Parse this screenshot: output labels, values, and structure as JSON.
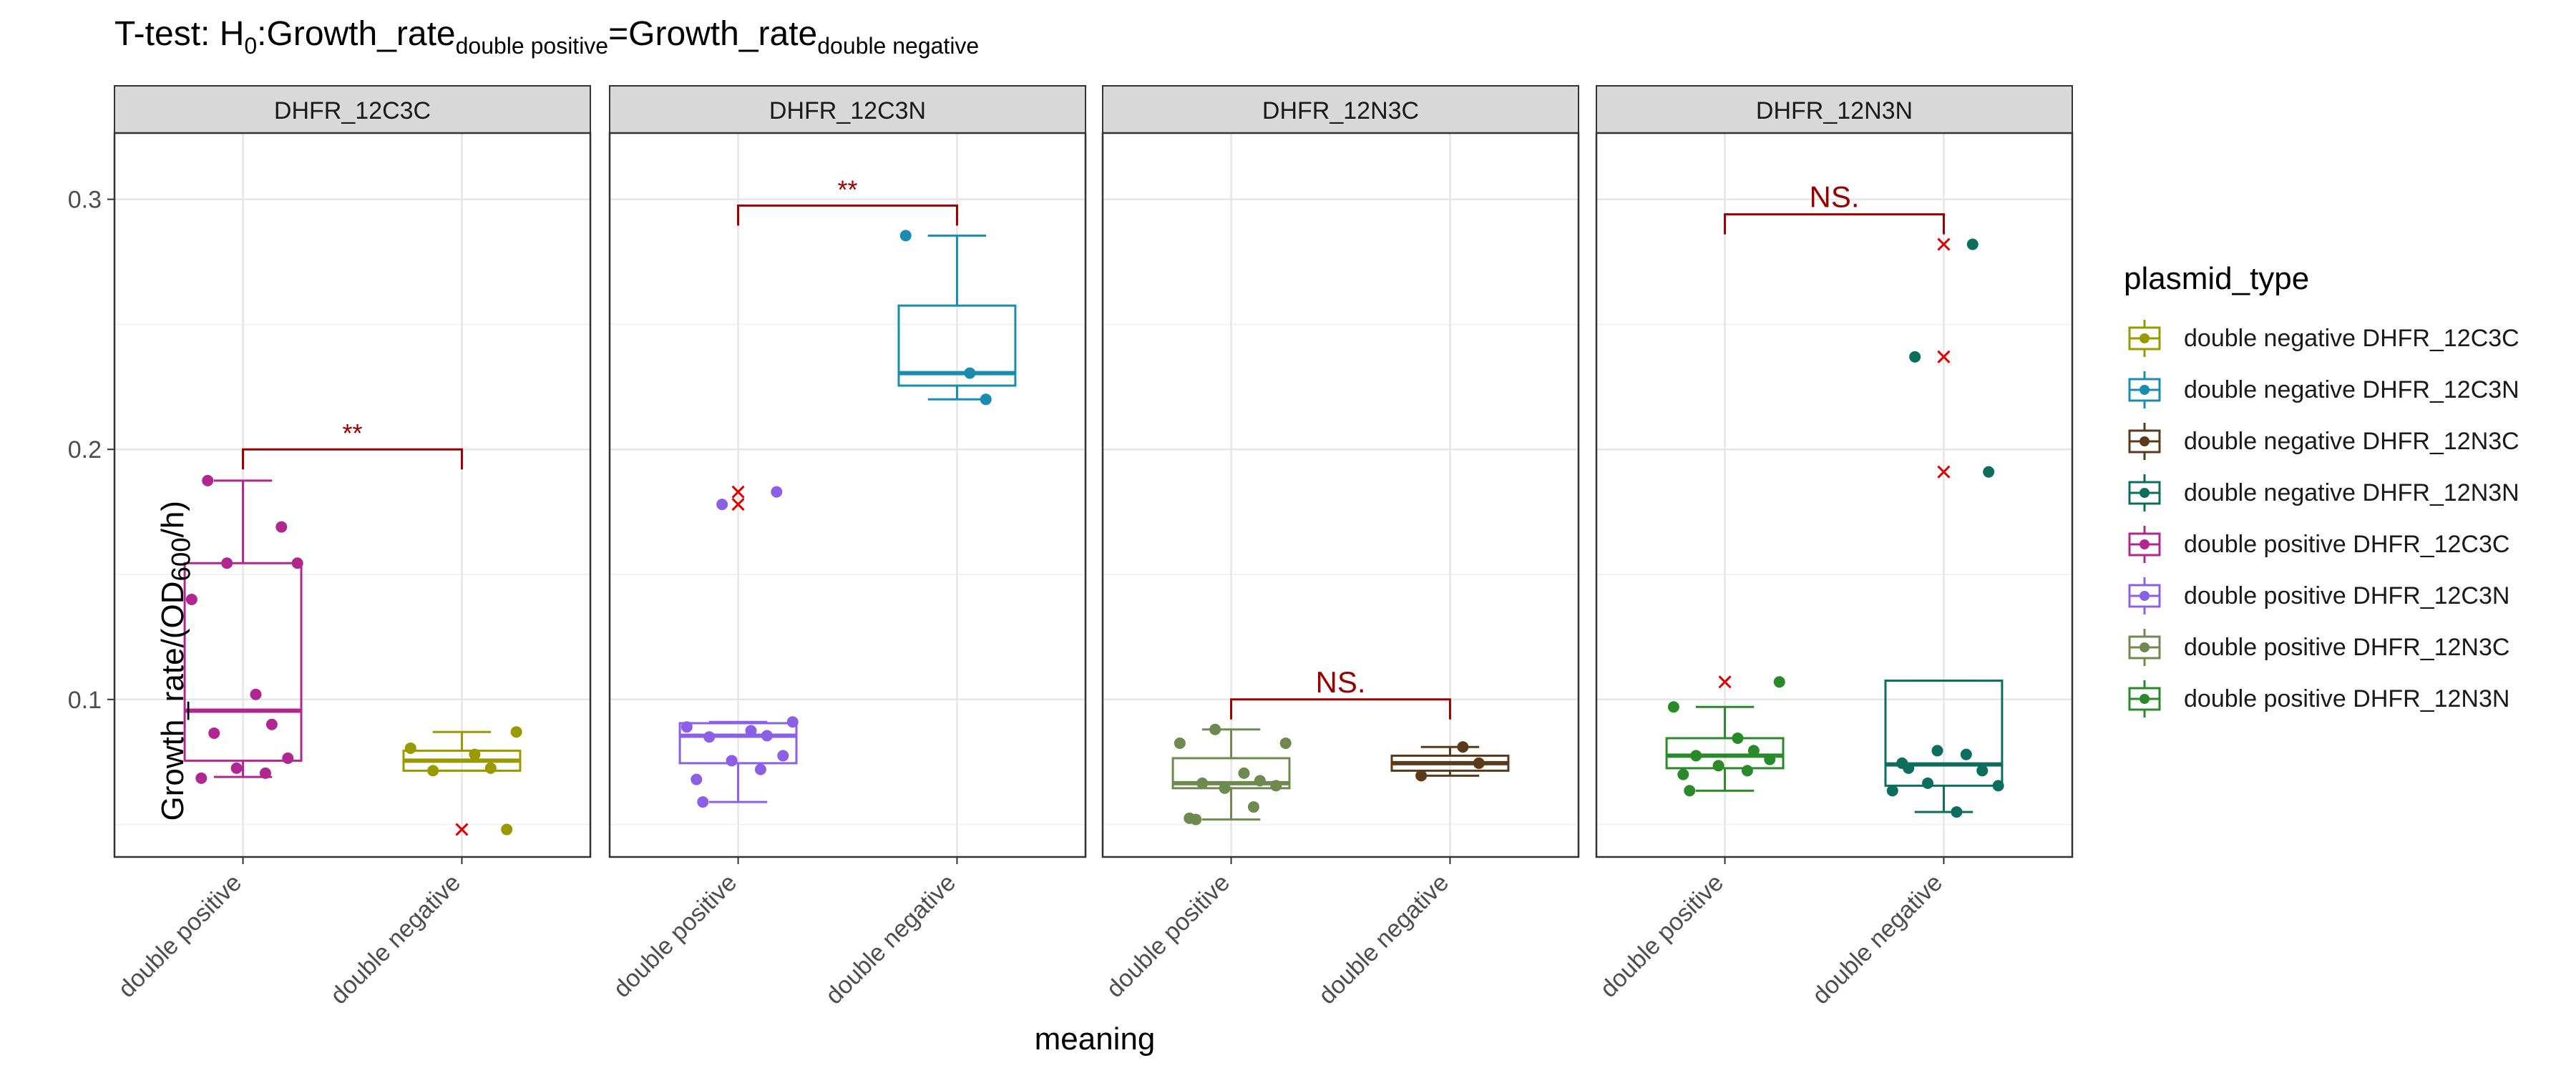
{
  "title": {
    "prefix": "T-test: H",
    "h_sub": "0",
    "lhs": ":Growth_rate",
    "lhs_sub": "double positive",
    "eq": "=Growth_rate",
    "rhs_sub": "double negative"
  },
  "y_label": {
    "prefix": "Growth_rate/(OD",
    "sub": "600",
    "suffix": "/h)"
  },
  "x_label": "meaning",
  "legend": {
    "title": "plasmid_type",
    "items": [
      {
        "label": "double negative DHFR_12C3C",
        "color": "#999900"
      },
      {
        "label": "double negative DHFR_12C3N",
        "color": "#1a8caf"
      },
      {
        "label": "double negative DHFR_12N3C",
        "color": "#5a3a1a"
      },
      {
        "label": "double negative DHFR_12N3N",
        "color": "#0e6e5e"
      },
      {
        "label": "double positive DHFR_12C3C",
        "color": "#b0288f"
      },
      {
        "label": "double positive DHFR_12C3N",
        "color": "#8b60e6"
      },
      {
        "label": "double positive DHFR_12N3C",
        "color": "#6e8a50"
      },
      {
        "label": "double positive DHFR_12N3N",
        "color": "#2a8a2a"
      }
    ]
  },
  "chart_data": {
    "type": "box",
    "ylim": [
      0.037,
      0.3265
    ],
    "y_ticks": [
      0.1,
      0.2,
      0.3
    ],
    "y_tick_labels": [
      "0.1",
      "0.2",
      "0.3"
    ],
    "categories": [
      "double positive",
      "double negative"
    ],
    "grid": true,
    "legend_position": "right",
    "outlier_color": "#e00000",
    "bracket_color": "#990000",
    "panels": [
      {
        "name": "DHFR_12C3C",
        "boxes": [
          {
            "group": "double positive DHFR_12C3C",
            "color": "#b0288f",
            "lower_whisker": 0.069,
            "q1": 0.0755,
            "median": 0.0955,
            "q3": 0.1545,
            "upper_whisker": 0.1875,
            "points": [
              0.1875,
              0.169,
              0.1545,
              0.1545,
              0.14,
              0.102,
              0.09,
              0.0865,
              0.0765,
              0.0725,
              0.0705,
              0.0685
            ],
            "outliers": []
          },
          {
            "group": "double negative DHFR_12C3C",
            "color": "#999900",
            "lower_whisker": 0.0715,
            "q1": 0.0715,
            "median": 0.0755,
            "q3": 0.0795,
            "upper_whisker": 0.087,
            "points": [
              0.087,
              0.0805,
              0.078,
              0.0725,
              0.0715,
              0.048
            ],
            "outliers": [
              0.048
            ]
          }
        ],
        "bracket": {
          "y": 0.2,
          "label": "**"
        }
      },
      {
        "name": "DHFR_12C3N",
        "boxes": [
          {
            "group": "double positive DHFR_12C3N",
            "color": "#8b60e6",
            "lower_whisker": 0.059,
            "q1": 0.0745,
            "median": 0.0855,
            "q3": 0.0905,
            "upper_whisker": 0.091,
            "points": [
              0.183,
              0.178,
              0.091,
              0.089,
              0.0875,
              0.0855,
              0.085,
              0.0775,
              0.0755,
              0.072,
              0.068,
              0.059
            ],
            "outliers": [
              0.183,
              0.178
            ]
          },
          {
            "group": "double negative DHFR_12C3N",
            "color": "#1a8caf",
            "lower_whisker": 0.22,
            "q1": 0.2255,
            "median": 0.2305,
            "q3": 0.2575,
            "upper_whisker": 0.2855,
            "points": [
              0.2855,
              0.2305,
              0.22
            ],
            "outliers": []
          }
        ],
        "bracket": {
          "y": 0.2975,
          "label": "**"
        }
      },
      {
        "name": "DHFR_12N3C",
        "boxes": [
          {
            "group": "double positive DHFR_12N3C",
            "color": "#6e8a50",
            "lower_whisker": 0.052,
            "q1": 0.0645,
            "median": 0.0665,
            "q3": 0.0765,
            "upper_whisker": 0.088,
            "points": [
              0.088,
              0.0825,
              0.0825,
              0.0705,
              0.0675,
              0.0665,
              0.0655,
              0.0645,
              0.057,
              0.0525,
              0.052
            ],
            "outliers": []
          },
          {
            "group": "double negative DHFR_12N3C",
            "color": "#5a3a1a",
            "lower_whisker": 0.0695,
            "q1": 0.0715,
            "median": 0.0745,
            "q3": 0.0775,
            "upper_whisker": 0.081,
            "points": [
              0.081,
              0.0745,
              0.0695
            ],
            "outliers": []
          }
        ],
        "bracket": {
          "y": 0.1,
          "label": "NS."
        }
      },
      {
        "name": "DHFR_12N3N",
        "boxes": [
          {
            "group": "double positive DHFR_12N3N",
            "color": "#2a8a2a",
            "lower_whisker": 0.0635,
            "q1": 0.0725,
            "median": 0.0775,
            "q3": 0.0845,
            "upper_whisker": 0.097,
            "points": [
              0.107,
              0.097,
              0.0845,
              0.0795,
              0.0775,
              0.076,
              0.0735,
              0.0715,
              0.07,
              0.0635
            ],
            "outliers": [
              0.107
            ]
          },
          {
            "group": "double negative DHFR_12N3N",
            "color": "#0e6e5e",
            "lower_whisker": 0.055,
            "q1": 0.0655,
            "median": 0.074,
            "q3": 0.1075,
            "upper_whisker": 0.1075,
            "points": [
              0.282,
              0.237,
              0.191,
              0.0795,
              0.078,
              0.0745,
              0.0725,
              0.0715,
              0.0665,
              0.0655,
              0.0635,
              0.055
            ],
            "outliers": [
              0.282,
              0.237,
              0.191
            ]
          }
        ],
        "bracket": {
          "y": 0.294,
          "label": "NS."
        }
      }
    ]
  }
}
